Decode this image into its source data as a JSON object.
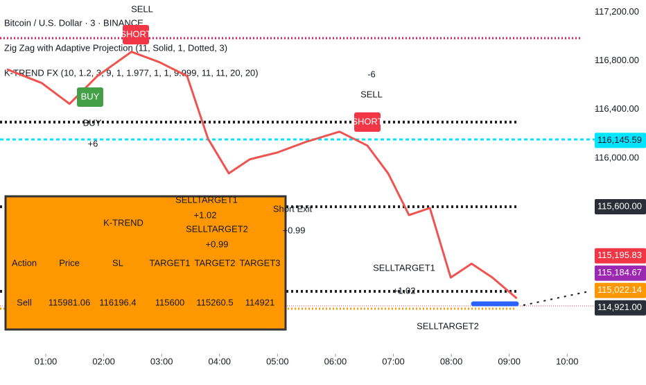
{
  "header": {
    "symbol": "Bitcoin / U.S. Dollar · 3 · BINANCE",
    "indicator1": "Zig Zag with Adaptive Projection (11, Solid, 1, Dotted, 3)",
    "indicator2": "K-TREND FX (10, 1.2, 3, 9, 1, 1.977, 1, 1, 9.999, 11, 11, 20, 20)"
  },
  "chart_data": {
    "type": "line",
    "color": "#ef5350",
    "x": [
      0.33,
      0.93,
      1.41,
      1.89,
      2.48,
      2.96,
      3.44,
      3.8,
      4.16,
      4.52,
      5.0,
      5.48,
      6.07,
      6.55,
      6.91,
      7.27,
      7.63,
      7.99,
      8.35,
      8.71,
      9.13
    ],
    "values": [
      116730,
      116617,
      116446,
      116674,
      116874,
      116789,
      116674,
      116160,
      115874,
      115989,
      116046,
      116131,
      116217,
      116103,
      115874,
      115531,
      115589,
      115017,
      115131,
      115017,
      114846
    ],
    "xlim": [
      0.21,
      10.26
    ],
    "xticks": [
      {
        "value": 1,
        "label": "01:00"
      },
      {
        "value": 2,
        "label": "02:00"
      },
      {
        "value": 3,
        "label": "03:00"
      },
      {
        "value": 4,
        "label": "04:00"
      },
      {
        "value": 5,
        "label": "05:00"
      },
      {
        "value": 6,
        "label": "06:00"
      },
      {
        "value": 7,
        "label": "07:00"
      },
      {
        "value": 8,
        "label": "08:00"
      },
      {
        "value": 9,
        "label": "09:00"
      },
      {
        "value": 10,
        "label": "10:00"
      }
    ],
    "ylim": [
      114390,
      117300
    ],
    "yticks": [
      {
        "value": 117200,
        "label": "117,200.00"
      },
      {
        "value": 116800,
        "label": "116,800.00"
      },
      {
        "value": 116400,
        "label": "116,400.00"
      },
      {
        "value": 116000,
        "label": "116,000.00"
      }
    ],
    "price_labels": [
      {
        "value": 116145.59,
        "label": "116,145.59",
        "color": "#00e5ff"
      },
      {
        "value": 115600,
        "label": "115,600.00",
        "color": "#2a2e39"
      },
      {
        "value": 115195.83,
        "label": "115,195.83",
        "color": "#f23645"
      },
      {
        "value": 115184.67,
        "label": "115,184.67",
        "color": "#9c27b0"
      },
      {
        "value": 115022.14,
        "label": "115,022.14",
        "color": "#ff9800"
      },
      {
        "value": 114921,
        "label": "114,921.00",
        "color": "#2a2e39"
      }
    ]
  },
  "annotations": [
    "SELL",
    "SHORT",
    "BUY",
    "BUY",
    "+6",
    "-6",
    "SELL",
    "SHORT",
    "Short Exit",
    "+0.99",
    "SELLTARGET1",
    "+1.02",
    "SELLTARGET2",
    "+0.99",
    "SELLTARGET1",
    "+1.02",
    "SELLTARGET2"
  ],
  "signal_table": {
    "title": "K-TREND",
    "columns": [
      "Action",
      "Price",
      "SL",
      "TARGET1",
      "TARGET2",
      "TARGET3"
    ],
    "rows": [
      [
        "Sell",
        115981.06,
        116196.4,
        115600,
        115260.5,
        114921
      ]
    ]
  }
}
